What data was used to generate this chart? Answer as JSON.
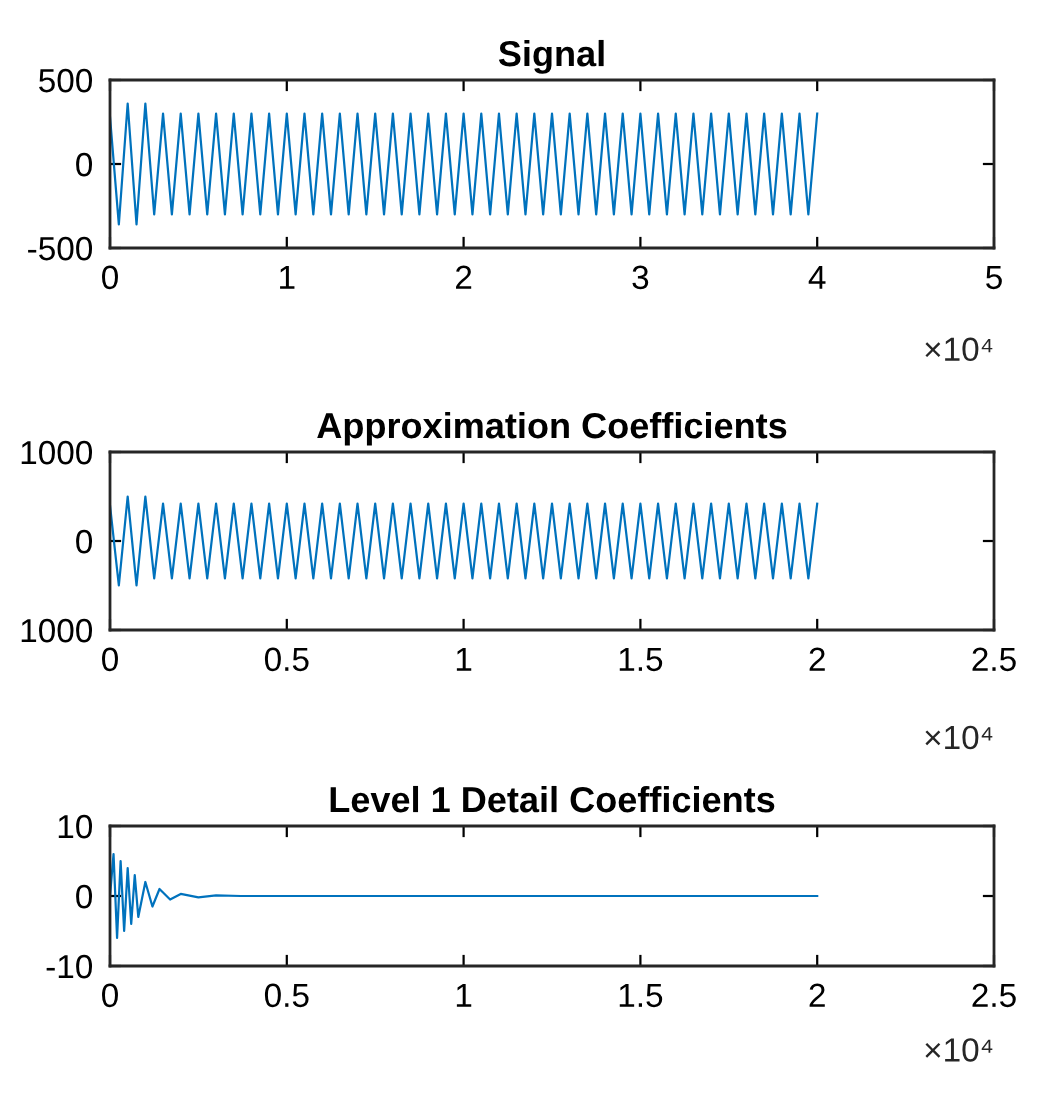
{
  "chart_data": [
    {
      "type": "line",
      "title": "Signal",
      "annotations": [
        "×10⁴"
      ],
      "series": [
        {
          "color": "#0072bd",
          "x": [
            0,
            0.05,
            0.1,
            0.15,
            0.2,
            0.25,
            0.3,
            0.35,
            0.4,
            0.45,
            0.5,
            0.55,
            0.6,
            0.65,
            0.7,
            0.75,
            0.8,
            0.85,
            0.9,
            0.95,
            1,
            1.05,
            1.1,
            1.15,
            1.2,
            1.25,
            1.3,
            1.35,
            1.4,
            1.45,
            1.5,
            1.55,
            1.6,
            1.65,
            1.7,
            1.75,
            1.8,
            1.85,
            1.9,
            1.95,
            2,
            2.05,
            2.1,
            2.15,
            2.2,
            2.25,
            2.3,
            2.35,
            2.4,
            2.45,
            2.5,
            2.55,
            2.6,
            2.65,
            2.7,
            2.75,
            2.8,
            2.85,
            2.9,
            2.95,
            3,
            3.05,
            3.1,
            3.15,
            3.2,
            3.25,
            3.3,
            3.35,
            3.4,
            3.45,
            3.5,
            3.55,
            3.6,
            3.65,
            3.7,
            3.75,
            3.8,
            3.85,
            3.9,
            3.95,
            4
          ],
          "values": [
            280,
            -360,
            360,
            -360,
            360,
            -300,
            300,
            -300,
            300,
            -300,
            300,
            -300,
            300,
            -300,
            300,
            -300,
            300,
            -300,
            300,
            -300,
            300,
            -300,
            300,
            -300,
            300,
            -300,
            300,
            -300,
            300,
            -300,
            300,
            -300,
            300,
            -300,
            300,
            -300,
            300,
            -300,
            300,
            -300,
            300,
            -300,
            300,
            -300,
            300,
            -300,
            300,
            -300,
            300,
            -300,
            300,
            -300,
            300,
            -300,
            300,
            -300,
            300,
            -300,
            300,
            -300,
            300,
            -300,
            300,
            -300,
            300,
            -300,
            300,
            -300,
            300,
            -300,
            300,
            -300,
            300,
            -300,
            300,
            -300,
            300,
            -300,
            300,
            -300,
            300
          ]
        }
      ],
      "xlim": [
        0,
        5
      ],
      "xticks": [
        0,
        1,
        2,
        3,
        4,
        5
      ],
      "ylim": [
        -500,
        500
      ],
      "yticks": [
        -500,
        0,
        500
      ],
      "grid": false
    },
    {
      "type": "line",
      "title": "Approximation Coefficients",
      "annotations": [
        "×10⁴"
      ],
      "series": [
        {
          "color": "#0072bd",
          "x": [
            0,
            0.025,
            0.05,
            0.075,
            0.1,
            0.125,
            0.15,
            0.175,
            0.2,
            0.225,
            0.25,
            0.275,
            0.3,
            0.325,
            0.35,
            0.375,
            0.4,
            0.425,
            0.45,
            0.475,
            0.5,
            0.525,
            0.55,
            0.575,
            0.6,
            0.625,
            0.65,
            0.675,
            0.7,
            0.725,
            0.75,
            0.775,
            0.8,
            0.825,
            0.85,
            0.875,
            0.9,
            0.925,
            0.95,
            0.975,
            1,
            1.025,
            1.05,
            1.075,
            1.1,
            1.125,
            1.15,
            1.175,
            1.2,
            1.225,
            1.25,
            1.275,
            1.3,
            1.325,
            1.35,
            1.375,
            1.4,
            1.425,
            1.45,
            1.475,
            1.5,
            1.525,
            1.55,
            1.575,
            1.6,
            1.625,
            1.65,
            1.675,
            1.7,
            1.725,
            1.75,
            1.775,
            1.8,
            1.825,
            1.85,
            1.875,
            1.9,
            1.925,
            1.95,
            1.975,
            2
          ],
          "values": [
            400,
            -500,
            500,
            -500,
            500,
            -420,
            420,
            -420,
            420,
            -420,
            420,
            -420,
            420,
            -420,
            420,
            -420,
            420,
            -420,
            420,
            -420,
            420,
            -420,
            420,
            -420,
            420,
            -420,
            420,
            -420,
            420,
            -420,
            420,
            -420,
            420,
            -420,
            420,
            -420,
            420,
            -420,
            420,
            -420,
            420,
            -420,
            420,
            -420,
            420,
            -420,
            420,
            -420,
            420,
            -420,
            420,
            -420,
            420,
            -420,
            420,
            -420,
            420,
            -420,
            420,
            -420,
            420,
            -420,
            420,
            -420,
            420,
            -420,
            420,
            -420,
            420,
            -420,
            420,
            -420,
            420,
            -420,
            420,
            -420,
            420,
            -420,
            420,
            -420,
            420
          ]
        }
      ],
      "xlim": [
        0,
        2.5
      ],
      "xticks": [
        0,
        0.5,
        1,
        1.5,
        2,
        2.5
      ],
      "ylim": [
        -1000,
        1000
      ],
      "yticks": [
        {
          "value": -1000,
          "label": "1000"
        },
        0,
        1000
      ],
      "grid": false
    },
    {
      "type": "line",
      "title": "Level 1 Detail Coefficients",
      "annotations": [
        "×10⁴"
      ],
      "series": [
        {
          "color": "#0072bd",
          "x": [
            0,
            0.01,
            0.02,
            0.03,
            0.04,
            0.05,
            0.06,
            0.07,
            0.08,
            0.1,
            0.12,
            0.14,
            0.17,
            0.2,
            0.25,
            0.3,
            0.37,
            2
          ],
          "values": [
            0,
            6,
            -6,
            5,
            -5,
            4,
            -4,
            3,
            -3,
            2,
            -1.5,
            1,
            -0.5,
            0.3,
            -0.2,
            0.1,
            0,
            0
          ]
        }
      ],
      "xlim": [
        0,
        2.5
      ],
      "xticks": [
        0,
        0.5,
        1,
        1.5,
        2,
        2.5
      ],
      "ylim": [
        -10,
        10
      ],
      "yticks": [
        -10,
        0,
        10
      ],
      "grid": false
    }
  ]
}
